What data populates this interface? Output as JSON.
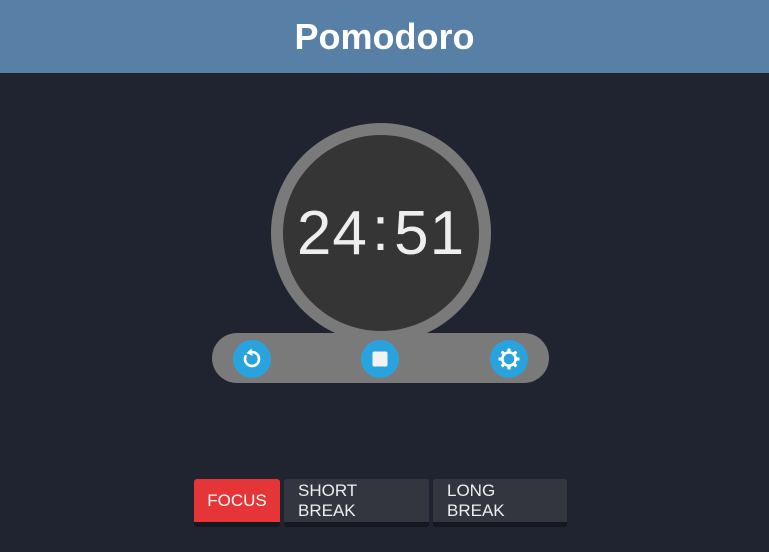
{
  "header": {
    "title": "Pomodoro"
  },
  "timer": {
    "minutes": "24",
    "separator": ":",
    "seconds": "51"
  },
  "controls": {
    "reset_icon": "refresh-icon",
    "stop_icon": "stop-icon",
    "settings_icon": "gear-icon"
  },
  "tabs": [
    {
      "label": "FOCUS",
      "active": true
    },
    {
      "label": "SHORT BREAK",
      "active": false
    },
    {
      "label": "LONG BREAK",
      "active": false
    }
  ],
  "colors": {
    "header_bg": "#5880a7",
    "page_bg": "#1f2430",
    "accent_blue": "#29a3dd",
    "active_tab": "#e53537",
    "inactive_tab": "#33363e"
  }
}
